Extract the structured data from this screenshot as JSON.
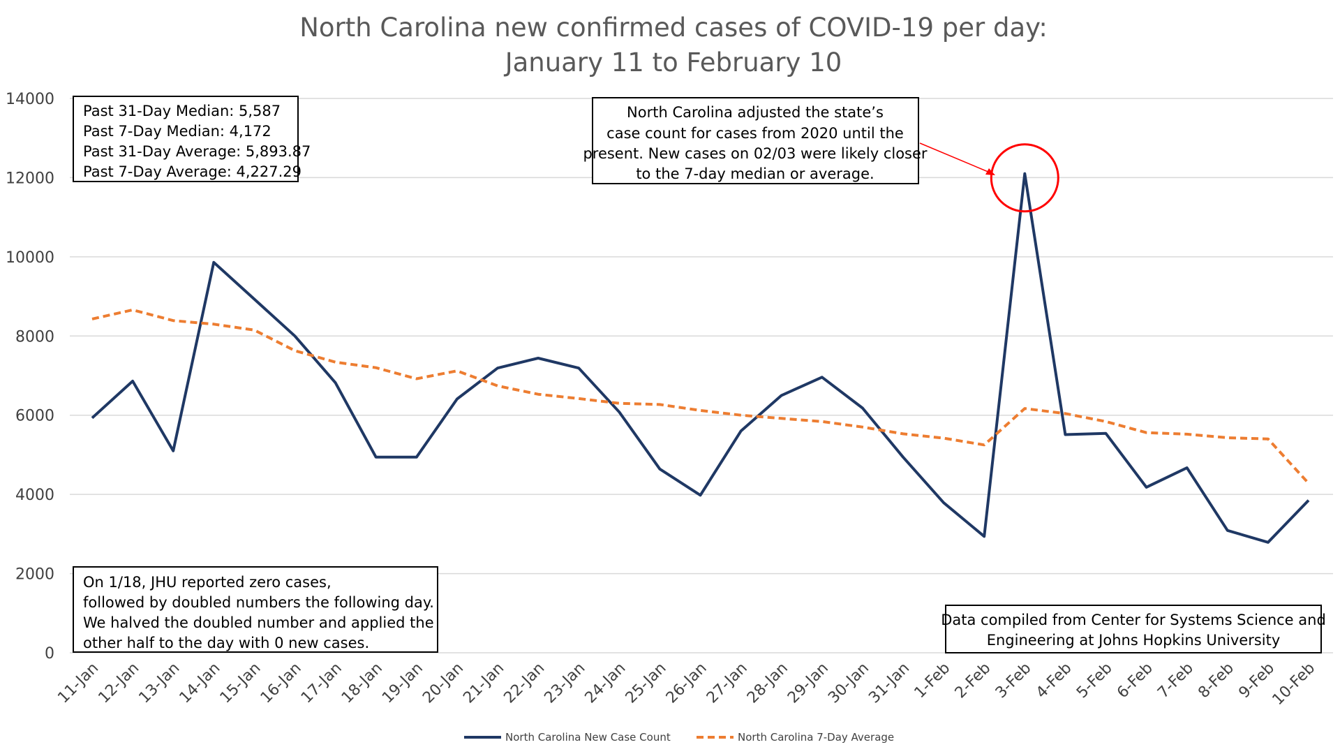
{
  "chart_data": {
    "type": "line",
    "title_lines": [
      "North Carolina new confirmed cases of COVID-19 per day:",
      "January 11 to February 10"
    ],
    "categories": [
      "11-Jan",
      "12-Jan",
      "13-Jan",
      "14-Jan",
      "15-Jan",
      "16-Jan",
      "17-Jan",
      "18-Jan",
      "19-Jan",
      "20-Jan",
      "21-Jan",
      "22-Jan",
      "23-Jan",
      "24-Jan",
      "25-Jan",
      "26-Jan",
      "27-Jan",
      "28-Jan",
      "29-Jan",
      "30-Jan",
      "31-Jan",
      "1-Feb",
      "2-Feb",
      "3-Feb",
      "4-Feb",
      "5-Feb",
      "6-Feb",
      "7-Feb",
      "8-Feb",
      "9-Feb",
      "10-Feb"
    ],
    "series": [
      {
        "name": "North Carolina New Case Count",
        "color": "#1f3864",
        "style": "solid",
        "values": [
          5930,
          6860,
          5100,
          9860,
          8930,
          8000,
          6820,
          4940,
          4940,
          6410,
          7190,
          7440,
          7190,
          6080,
          4640,
          3980,
          5600,
          6500,
          6960,
          6180,
          4940,
          3790,
          2940,
          12100,
          5510,
          5540,
          4180,
          4670,
          3090,
          2790,
          3850
        ]
      },
      {
        "name": "North Carolina 7-Day Average",
        "color": "#ed7d31",
        "style": "dashed",
        "values": [
          8430,
          8660,
          8390,
          8300,
          8150,
          7630,
          7340,
          7200,
          6920,
          7120,
          6740,
          6530,
          6420,
          6300,
          6270,
          6120,
          6000,
          5920,
          5840,
          5700,
          5530,
          5420,
          5250,
          6170,
          6040,
          5840,
          5560,
          5520,
          5430,
          5400,
          4280
        ]
      }
    ],
    "ylim": [
      0,
      14000
    ],
    "yticks": [
      0,
      2000,
      4000,
      6000,
      8000,
      10000,
      12000,
      14000
    ],
    "grid": true,
    "legend_position": "bottom",
    "annotations": {
      "stats_box": [
        "Past 31-Day Median: 5,587",
        "Past 7-Day Median: 4,172",
        "Past 31-Day Average: 5,893.87",
        "Past 7-Day Average: 4,227.29"
      ],
      "adjustment_note": [
        "North Carolina adjusted the state’s",
        "case count for cases from 2020 until the",
        "present. New cases on 02/03 were likely closer",
        "to the 7-day median or average."
      ],
      "jhu_note": [
        "On 1/18, JHU reported zero cases,",
        "followed by doubled numbers the following day.",
        "We halved the doubled number and applied the",
        "other half to the day with 0 new cases."
      ],
      "source_note": [
        "Data compiled from Center for Systems Science and",
        "Engineering at Johns Hopkins University"
      ],
      "highlight_category": "3-Feb",
      "highlight_color": "#ff0000"
    }
  }
}
